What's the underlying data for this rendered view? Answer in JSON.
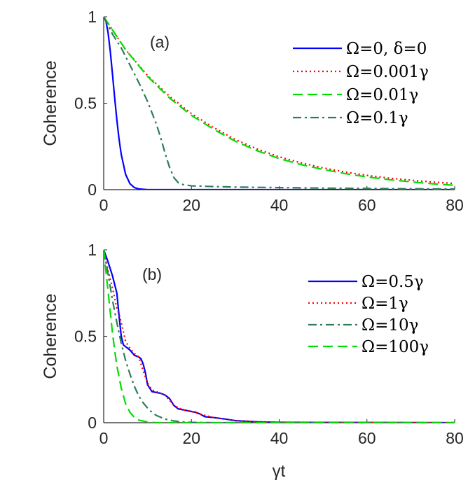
{
  "chart_data": [
    {
      "type": "line",
      "panel_label": "(a)",
      "title": "",
      "xlabel": "",
      "ylabel": "Coherence",
      "xlim": [
        0,
        80
      ],
      "ylim": [
        0,
        1
      ],
      "xticks": [
        "0",
        "20",
        "40",
        "60",
        "80"
      ],
      "yticks": [
        "0",
        "0.5",
        "1"
      ],
      "legend_position": "top-right",
      "series": [
        {
          "name": "Ω=0, δ=0",
          "color": "#0000ff",
          "style": "solid",
          "x": [
            0,
            0.5,
            1,
            1.5,
            2,
            2.5,
            3,
            3.5,
            4,
            5,
            6,
            7,
            8,
            10,
            12,
            80
          ],
          "y": [
            1,
            0.976,
            0.908,
            0.801,
            0.669,
            0.532,
            0.404,
            0.293,
            0.204,
            0.088,
            0.034,
            0.012,
            0.004,
            0.0,
            0.0,
            0.0
          ]
        },
        {
          "name": "Ω=0.001γ",
          "color": "#ff0000",
          "style": "dotted",
          "x": [
            0,
            5,
            10,
            15,
            20,
            25,
            30,
            35,
            40,
            45,
            50,
            55,
            60,
            65,
            70,
            75,
            80
          ],
          "y": [
            1,
            0.81,
            0.66,
            0.54,
            0.44,
            0.36,
            0.29,
            0.235,
            0.19,
            0.155,
            0.126,
            0.102,
            0.083,
            0.067,
            0.055,
            0.044,
            0.036
          ]
        },
        {
          "name": "Ω=0.01γ",
          "color": "#00dd00",
          "style": "dashed",
          "x": [
            0,
            5,
            10,
            15,
            20,
            25,
            30,
            35,
            40,
            45,
            50,
            55,
            60,
            65,
            70,
            75,
            80
          ],
          "y": [
            1,
            0.81,
            0.655,
            0.53,
            0.43,
            0.35,
            0.28,
            0.225,
            0.18,
            0.145,
            0.117,
            0.093,
            0.074,
            0.058,
            0.045,
            0.034,
            0.025
          ]
        },
        {
          "name": "Ω=0.1γ",
          "color": "#2e7d57",
          "style": "dashdot",
          "x": [
            0,
            2,
            4,
            6,
            8,
            10,
            12,
            13,
            14,
            15,
            16,
            17,
            18,
            20,
            25,
            30,
            40,
            50,
            60,
            70,
            80
          ],
          "y": [
            1,
            0.9,
            0.82,
            0.72,
            0.62,
            0.51,
            0.38,
            0.3,
            0.21,
            0.13,
            0.07,
            0.04,
            0.03,
            0.022,
            0.018,
            0.015,
            0.012,
            0.009,
            0.007,
            0.005,
            0.004
          ]
        }
      ]
    },
    {
      "type": "line",
      "panel_label": "(b)",
      "title": "",
      "xlabel": "γt",
      "ylabel": "Coherence",
      "xlim": [
        0,
        80
      ],
      "ylim": [
        0,
        1
      ],
      "xticks": [
        "0",
        "20",
        "40",
        "60",
        "80"
      ],
      "yticks": [
        "0",
        "0.5",
        "1"
      ],
      "legend_position": "top-right",
      "series": [
        {
          "name": "Ω=0.5γ",
          "color": "#0000ff",
          "style": "solid",
          "x": [
            0,
            1,
            2,
            3,
            3.5,
            4,
            4.5,
            5,
            6,
            7,
            8,
            8.5,
            9,
            9.5,
            10,
            11,
            12,
            13,
            14,
            15,
            16,
            17,
            18,
            20,
            21,
            22,
            23,
            25,
            28,
            30,
            35,
            40,
            80
          ],
          "y": [
            1,
            0.93,
            0.85,
            0.75,
            0.62,
            0.5,
            0.45,
            0.44,
            0.42,
            0.39,
            0.38,
            0.37,
            0.34,
            0.29,
            0.22,
            0.18,
            0.175,
            0.17,
            0.16,
            0.14,
            0.1,
            0.08,
            0.075,
            0.065,
            0.06,
            0.05,
            0.035,
            0.03,
            0.02,
            0.012,
            0.005,
            0.002,
            0.0
          ]
        },
        {
          "name": "Ω=1γ",
          "color": "#ff0000",
          "style": "dotted",
          "x": [
            0,
            1,
            2,
            3,
            3.5,
            4,
            5,
            6,
            7,
            8,
            9,
            10,
            11,
            12,
            14,
            16,
            18,
            20,
            22,
            25,
            28,
            30,
            35,
            40,
            80
          ],
          "y": [
            1,
            0.88,
            0.78,
            0.66,
            0.63,
            0.58,
            0.47,
            0.43,
            0.4,
            0.38,
            0.3,
            0.23,
            0.19,
            0.18,
            0.16,
            0.1,
            0.075,
            0.065,
            0.05,
            0.03,
            0.02,
            0.012,
            0.005,
            0.002,
            0.0
          ]
        },
        {
          "name": "Ω=10γ",
          "color": "#2e7d57",
          "style": "dashdot",
          "x": [
            0,
            1,
            2,
            3,
            4,
            5,
            6,
            7,
            8,
            9,
            10,
            11,
            12,
            14,
            16,
            18,
            20,
            25,
            80
          ],
          "y": [
            1,
            0.86,
            0.71,
            0.58,
            0.46,
            0.36,
            0.28,
            0.21,
            0.155,
            0.115,
            0.085,
            0.06,
            0.042,
            0.021,
            0.01,
            0.005,
            0.002,
            0.0,
            0.0
          ]
        },
        {
          "name": "Ω=100γ",
          "color": "#00dd00",
          "style": "dashed",
          "x": [
            0,
            0.5,
            1,
            1.5,
            2,
            2.5,
            3,
            4,
            5,
            6,
            7,
            8,
            10,
            12,
            80
          ],
          "y": [
            1,
            0.88,
            0.76,
            0.64,
            0.52,
            0.42,
            0.33,
            0.2,
            0.11,
            0.06,
            0.03,
            0.015,
            0.004,
            0.0,
            0.0
          ]
        }
      ]
    }
  ]
}
